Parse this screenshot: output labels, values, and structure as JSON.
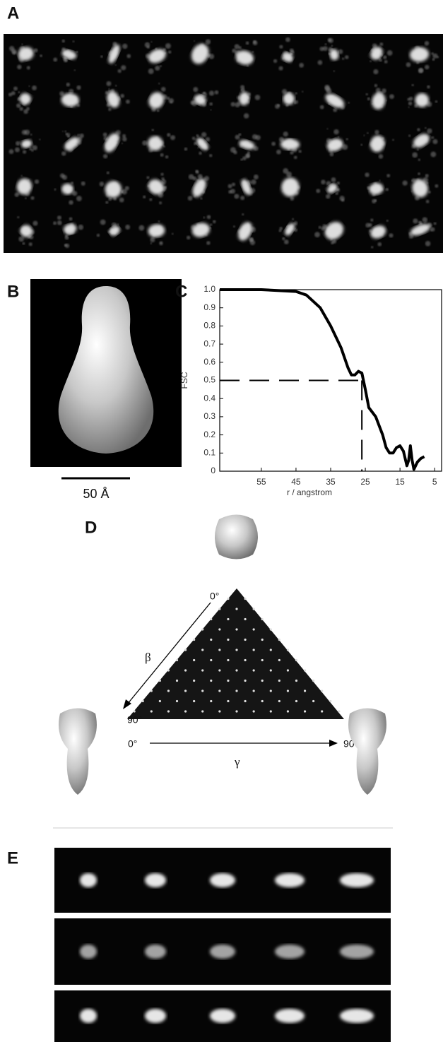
{
  "panel_labels": [
    "A",
    "B",
    "C",
    "D",
    "E"
  ],
  "scale_bar": "50 Å",
  "chart_data": {
    "type": "line",
    "x": [
      67,
      55,
      45,
      42,
      38,
      35,
      32,
      30,
      29,
      28,
      27,
      26,
      25,
      24,
      22,
      21,
      20,
      19,
      18,
      17,
      16,
      15,
      14,
      13,
      12.5,
      12,
      11.5,
      11,
      10,
      9,
      8
    ],
    "values": [
      1.0,
      1.0,
      0.99,
      0.97,
      0.9,
      0.8,
      0.68,
      0.57,
      0.53,
      0.53,
      0.55,
      0.54,
      0.45,
      0.35,
      0.3,
      0.25,
      0.2,
      0.13,
      0.1,
      0.1,
      0.13,
      0.14,
      0.11,
      0.03,
      0.06,
      0.14,
      0.06,
      0.01,
      0.05,
      0.07,
      0.08
    ],
    "color": "#000000",
    "xlabel": "r / angstrom",
    "ylabel": "FSC",
    "xlim": [
      67,
      3
    ],
    "xticks": [
      55,
      45,
      35,
      25,
      15,
      5
    ],
    "ylim": [
      0,
      1
    ],
    "yticks": [
      0,
      0.1,
      0.2,
      0.3,
      0.4,
      0.5,
      0.6,
      0.7,
      0.8,
      0.9,
      {
        "value": 1,
        "label": "1.0"
      }
    ],
    "cutoff": {
      "y": 0.5,
      "x": 26
    }
  },
  "diagram": {
    "apex_angle": "0°",
    "beta": "β",
    "beta_end": "90°",
    "gamma_start": "0°",
    "gamma_end": "90°",
    "gamma": "γ"
  }
}
